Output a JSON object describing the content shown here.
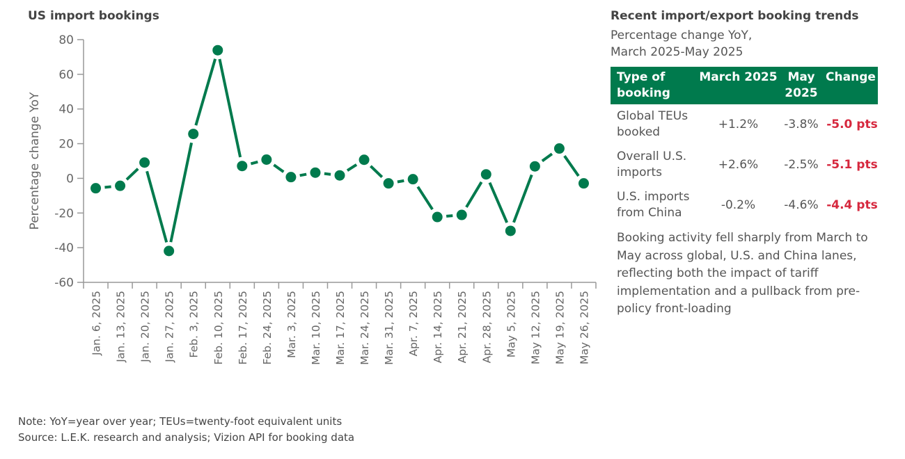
{
  "chart_data": {
    "type": "line",
    "title": "US import bookings",
    "ylabel": "Percentage change YoY",
    "xlabel": "",
    "ylim": [
      -60,
      80
    ],
    "yticks": [
      80,
      60,
      40,
      20,
      0,
      -20,
      -40,
      -60
    ],
    "grid": false,
    "color": "#007a4d",
    "categories": [
      "Jan. 6, 2025",
      "Jan. 13, 2025",
      "Jan. 20, 2025",
      "Jan. 27, 2025",
      "Feb. 3, 2025",
      "Feb. 10, 2025",
      "Feb. 17, 2025",
      "Feb. 24, 2025",
      "Mar. 3, 2025",
      "Mar. 10, 2025",
      "Mar. 17, 2025",
      "Mar. 24, 2025",
      "Mar. 31, 2025",
      "Apr. 7, 2025",
      "Apr. 14, 2025",
      "Apr. 21, 2025",
      "Apr. 28, 2025",
      "May 5, 2025",
      "May 12, 2025",
      "May 19, 2025",
      "May 26, 2025"
    ],
    "values": [
      -5.7,
      -4.3,
      9.1,
      -41.9,
      25.6,
      73.9,
      7.1,
      10.8,
      0.7,
      3.3,
      1.7,
      10.7,
      -2.9,
      -0.5,
      -22.3,
      -21.1,
      2.3,
      -30.3,
      6.9,
      17.2,
      -2.9
    ]
  },
  "side": {
    "title": "Recent import/export booking trends",
    "subtitle_line1": "Percentage change YoY,",
    "subtitle_line2": "March 2025-May 2025",
    "header_color": "#007a4d",
    "negative_color": "#d6283e",
    "headers": [
      "Type of booking",
      "March 2025",
      "May 2025",
      "Change"
    ],
    "rows": [
      {
        "type": "Global TEUs booked",
        "march": "+1.2%",
        "may": "-3.8%",
        "change": "-5.0 pts"
      },
      {
        "type": "Overall U.S. imports",
        "march": "+2.6%",
        "may": "-2.5%",
        "change": "-5.1 pts"
      },
      {
        "type": "U.S. imports from China",
        "march": "-0.2%",
        "may": "-4.6%",
        "change": "-4.4 pts"
      }
    ],
    "description": "Booking activity fell sharply from March to May across global, U.S. and China lanes, reflecting both the impact of tariff implementation and a pullback from pre-policy front-loading"
  },
  "notes": {
    "note": "Note: YoY=year over year; TEUs=twenty-foot equivalent units",
    "source": "Source: L.E.K. research and analysis; Vizion API for booking data"
  }
}
